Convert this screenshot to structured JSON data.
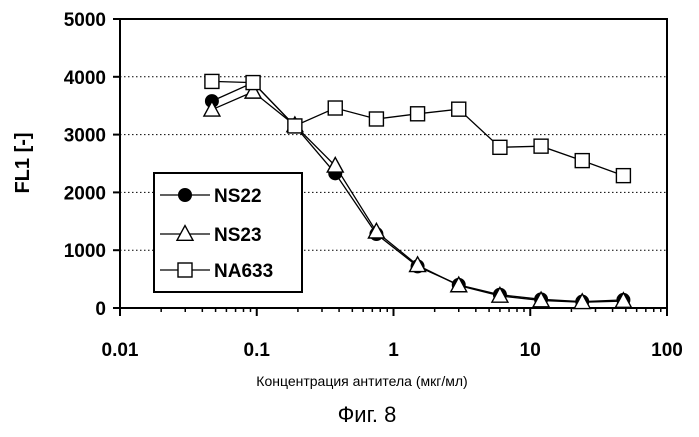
{
  "chart_data": {
    "type": "line",
    "xscale": "log",
    "xlim": [
      0.01,
      100
    ],
    "ylim": [
      0,
      5000
    ],
    "xticks": [
      "0.01",
      "0.1",
      "1",
      "10",
      "100"
    ],
    "yticks": [
      "0",
      "1000",
      "2000",
      "3000",
      "4000",
      "5000"
    ],
    "ylabel": "FL1 [-]",
    "xlabel": "Концентрация антитела (мкг/мл)",
    "caption": "Фиг. 8",
    "grid": "horizontal-dotted",
    "legend": "center-left",
    "series": [
      {
        "name": "NS22",
        "marker": "filled-circle",
        "x": [
          0.047,
          0.094,
          0.19,
          0.375,
          0.75,
          1.5,
          3,
          6,
          12,
          24,
          48
        ],
        "y": [
          3580,
          3900,
          3150,
          2330,
          1280,
          720,
          400,
          230,
          150,
          110,
          140
        ]
      },
      {
        "name": "NS23",
        "marker": "open-triangle",
        "x": [
          0.047,
          0.094,
          0.19,
          0.375,
          0.75,
          1.5,
          3,
          6,
          12,
          24,
          48
        ],
        "y": [
          3430,
          3740,
          3160,
          2460,
          1320,
          740,
          390,
          210,
          130,
          100,
          120
        ]
      },
      {
        "name": "NA633",
        "marker": "open-square",
        "x": [
          0.047,
          0.094,
          0.19,
          0.375,
          0.75,
          1.5,
          3,
          6,
          12,
          24,
          48
        ],
        "y": [
          3920,
          3900,
          3150,
          3460,
          3270,
          3360,
          3440,
          2780,
          2800,
          2550,
          2290
        ]
      }
    ]
  }
}
